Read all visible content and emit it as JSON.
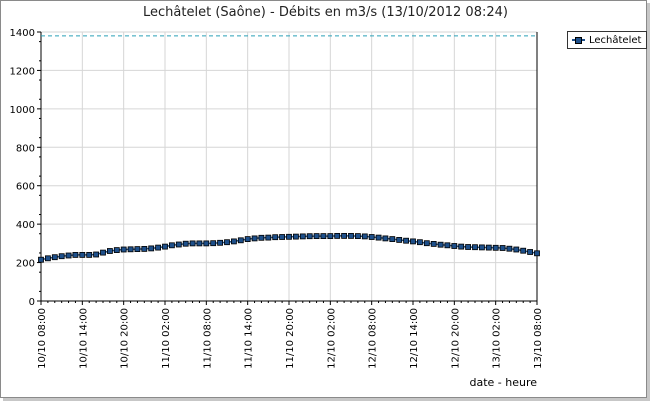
{
  "chart_data": {
    "type": "line",
    "title": "Lechâtelet (Saône) - Débits en m3/s (13/10/2012 08:24)",
    "xlabel": "date - heure",
    "ylabel": "",
    "ylim": [
      0,
      1400
    ],
    "yticks": [
      0,
      200,
      400,
      600,
      800,
      1000,
      1200,
      1400
    ],
    "xticks": [
      "10/10 08:00",
      "10/10 14:00",
      "10/10 20:00",
      "11/10 02:00",
      "11/10 08:00",
      "11/10 14:00",
      "11/10 20:00",
      "12/10 02:00",
      "12/10 08:00",
      "12/10 14:00",
      "12/10 20:00",
      "13/10 02:00",
      "13/10 08:00"
    ],
    "x_range_hours": [
      0,
      72
    ],
    "threshold": 1380,
    "grid": true,
    "legend_position": "top-right",
    "series": [
      {
        "name": "Lechâtelet",
        "color": "#1d4f8a",
        "x_hours": [
          0,
          1,
          2,
          3,
          4,
          5,
          6,
          7,
          8,
          9,
          10,
          11,
          12,
          13,
          14,
          15,
          16,
          17,
          18,
          19,
          20,
          21,
          22,
          23,
          24,
          25,
          26,
          27,
          28,
          29,
          30,
          31,
          32,
          33,
          34,
          35,
          36,
          37,
          38,
          39,
          40,
          41,
          42,
          43,
          44,
          45,
          46,
          47,
          48,
          49,
          50,
          51,
          52,
          53,
          54,
          55,
          56,
          57,
          58,
          59,
          60,
          61,
          62,
          63,
          64,
          65,
          66,
          67,
          68,
          69,
          70,
          71,
          72
        ],
        "values": [
          215,
          222,
          228,
          233,
          237,
          240,
          240,
          240,
          242,
          252,
          260,
          265,
          268,
          269,
          270,
          271,
          274,
          278,
          283,
          290,
          294,
          298,
          300,
          300,
          300,
          301,
          303,
          306,
          310,
          316,
          322,
          326,
          329,
          330,
          332,
          333,
          334,
          335,
          336,
          337,
          338,
          338,
          338,
          339,
          339,
          339,
          338,
          336,
          333,
          330,
          326,
          322,
          318,
          314,
          310,
          306,
          301,
          297,
          293,
          290,
          286,
          283,
          281,
          280,
          279,
          278,
          277,
          276,
          272,
          268,
          262,
          255,
          248
        ]
      }
    ]
  }
}
